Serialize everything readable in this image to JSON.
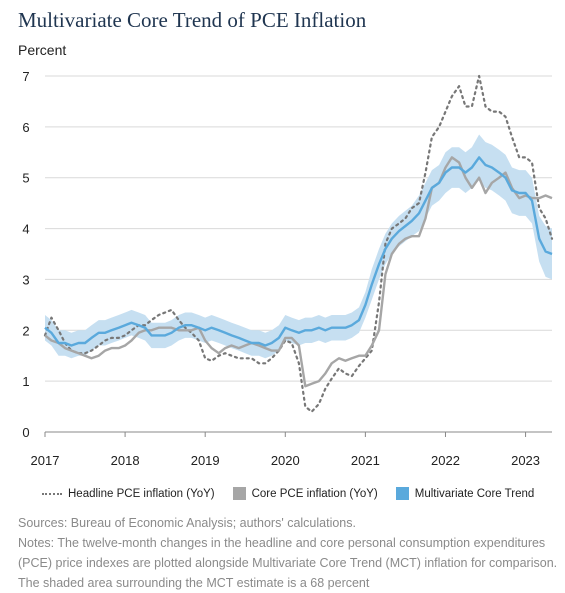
{
  "title": "Multivariate Core Trend of PCE Inflation",
  "ylabel": "Percent",
  "sources": "Sources: Bureau of Economic Analysis; authors' calculations.",
  "notes": "Notes: The twelve-month changes in the headline and core personal consumption expenditures (PCE) price indexes are plotted alongside Multivariate Core Trend (MCT) inflation for comparison. The shaded area surrounding the MCT estimate is a 68 percent",
  "chart_data": {
    "type": "line",
    "xlim": [
      2017.0,
      2023.33
    ],
    "ylim": [
      0,
      7
    ],
    "yticks": [
      "0",
      "1",
      "2",
      "3",
      "4",
      "5",
      "6",
      "7"
    ],
    "xticks": [
      {
        "value": 2017,
        "label": "2017"
      },
      {
        "value": 2018,
        "label": "2018"
      },
      {
        "value": 2019,
        "label": "2019"
      },
      {
        "value": 2020,
        "label": "2020"
      },
      {
        "value": 2021,
        "label": "2021"
      },
      {
        "value": 2022,
        "label": "2022"
      },
      {
        "value": 2023,
        "label": "2023"
      }
    ],
    "grid": true,
    "legend_position": "bottom",
    "series": [
      {
        "name": "Headline PCE inflation (YoY)",
        "style": "dotted",
        "color": "#777777",
        "points": [
          [
            2017.0,
            1.9
          ],
          [
            2017.08,
            2.25
          ],
          [
            2017.17,
            2.0
          ],
          [
            2017.25,
            1.75
          ],
          [
            2017.33,
            1.6
          ],
          [
            2017.42,
            1.55
          ],
          [
            2017.5,
            1.55
          ],
          [
            2017.58,
            1.6
          ],
          [
            2017.67,
            1.7
          ],
          [
            2017.75,
            1.8
          ],
          [
            2017.83,
            1.85
          ],
          [
            2017.92,
            1.85
          ],
          [
            2018.0,
            1.9
          ],
          [
            2018.08,
            2.0
          ],
          [
            2018.17,
            2.1
          ],
          [
            2018.25,
            2.1
          ],
          [
            2018.33,
            2.2
          ],
          [
            2018.42,
            2.3
          ],
          [
            2018.5,
            2.35
          ],
          [
            2018.58,
            2.4
          ],
          [
            2018.67,
            2.2
          ],
          [
            2018.75,
            2.05
          ],
          [
            2018.83,
            1.95
          ],
          [
            2018.92,
            1.8
          ],
          [
            2019.0,
            1.45
          ],
          [
            2019.08,
            1.4
          ],
          [
            2019.17,
            1.5
          ],
          [
            2019.25,
            1.55
          ],
          [
            2019.33,
            1.5
          ],
          [
            2019.42,
            1.45
          ],
          [
            2019.5,
            1.45
          ],
          [
            2019.58,
            1.45
          ],
          [
            2019.67,
            1.35
          ],
          [
            2019.75,
            1.35
          ],
          [
            2019.83,
            1.45
          ],
          [
            2019.92,
            1.6
          ],
          [
            2020.0,
            1.8
          ],
          [
            2020.08,
            1.75
          ],
          [
            2020.17,
            1.35
          ],
          [
            2020.25,
            0.5
          ],
          [
            2020.33,
            0.4
          ],
          [
            2020.42,
            0.55
          ],
          [
            2020.5,
            0.85
          ],
          [
            2020.58,
            1.05
          ],
          [
            2020.67,
            1.25
          ],
          [
            2020.75,
            1.15
          ],
          [
            2020.83,
            1.1
          ],
          [
            2020.92,
            1.3
          ],
          [
            2021.0,
            1.45
          ],
          [
            2021.08,
            1.6
          ],
          [
            2021.17,
            2.55
          ],
          [
            2021.25,
            3.7
          ],
          [
            2021.33,
            4.0
          ],
          [
            2021.42,
            4.1
          ],
          [
            2021.5,
            4.2
          ],
          [
            2021.58,
            4.4
          ],
          [
            2021.67,
            4.5
          ],
          [
            2021.75,
            5.1
          ],
          [
            2021.83,
            5.8
          ],
          [
            2021.92,
            6.0
          ],
          [
            2022.0,
            6.3
          ],
          [
            2022.08,
            6.6
          ],
          [
            2022.17,
            6.8
          ],
          [
            2022.25,
            6.4
          ],
          [
            2022.33,
            6.4
          ],
          [
            2022.42,
            7.0
          ],
          [
            2022.5,
            6.4
          ],
          [
            2022.58,
            6.3
          ],
          [
            2022.67,
            6.3
          ],
          [
            2022.75,
            6.2
          ],
          [
            2022.83,
            5.8
          ],
          [
            2022.92,
            5.4
          ],
          [
            2023.0,
            5.4
          ],
          [
            2023.08,
            5.3
          ],
          [
            2023.17,
            4.4
          ],
          [
            2023.25,
            4.2
          ],
          [
            2023.33,
            3.8
          ]
        ]
      },
      {
        "name": "Core PCE inflation (YoY)",
        "style": "solid",
        "color": "#a6a6a6",
        "points": [
          [
            2017.0,
            1.9
          ],
          [
            2017.08,
            1.8
          ],
          [
            2017.17,
            1.75
          ],
          [
            2017.25,
            1.65
          ],
          [
            2017.33,
            1.6
          ],
          [
            2017.42,
            1.55
          ],
          [
            2017.5,
            1.5
          ],
          [
            2017.58,
            1.45
          ],
          [
            2017.67,
            1.5
          ],
          [
            2017.75,
            1.6
          ],
          [
            2017.83,
            1.65
          ],
          [
            2017.92,
            1.65
          ],
          [
            2018.0,
            1.7
          ],
          [
            2018.08,
            1.8
          ],
          [
            2018.17,
            1.95
          ],
          [
            2018.25,
            2.0
          ],
          [
            2018.33,
            2.0
          ],
          [
            2018.42,
            2.05
          ],
          [
            2018.5,
            2.05
          ],
          [
            2018.58,
            2.05
          ],
          [
            2018.67,
            2.0
          ],
          [
            2018.75,
            2.0
          ],
          [
            2018.83,
            2.0
          ],
          [
            2018.92,
            2.05
          ],
          [
            2019.0,
            1.8
          ],
          [
            2019.08,
            1.65
          ],
          [
            2019.17,
            1.55
          ],
          [
            2019.25,
            1.65
          ],
          [
            2019.33,
            1.7
          ],
          [
            2019.42,
            1.65
          ],
          [
            2019.5,
            1.7
          ],
          [
            2019.58,
            1.75
          ],
          [
            2019.67,
            1.7
          ],
          [
            2019.75,
            1.65
          ],
          [
            2019.83,
            1.6
          ],
          [
            2019.92,
            1.6
          ],
          [
            2020.0,
            1.85
          ],
          [
            2020.08,
            1.85
          ],
          [
            2020.17,
            1.7
          ],
          [
            2020.25,
            0.9
          ],
          [
            2020.33,
            0.95
          ],
          [
            2020.42,
            1.0
          ],
          [
            2020.5,
            1.15
          ],
          [
            2020.58,
            1.35
          ],
          [
            2020.67,
            1.45
          ],
          [
            2020.75,
            1.4
          ],
          [
            2020.83,
            1.45
          ],
          [
            2020.92,
            1.5
          ],
          [
            2021.0,
            1.5
          ],
          [
            2021.08,
            1.7
          ],
          [
            2021.17,
            2.0
          ],
          [
            2021.25,
            3.1
          ],
          [
            2021.33,
            3.5
          ],
          [
            2021.42,
            3.7
          ],
          [
            2021.5,
            3.8
          ],
          [
            2021.58,
            3.85
          ],
          [
            2021.67,
            3.85
          ],
          [
            2021.75,
            4.2
          ],
          [
            2021.83,
            4.8
          ],
          [
            2021.92,
            4.9
          ],
          [
            2022.0,
            5.2
          ],
          [
            2022.08,
            5.4
          ],
          [
            2022.17,
            5.3
          ],
          [
            2022.25,
            5.0
          ],
          [
            2022.33,
            4.8
          ],
          [
            2022.42,
            5.0
          ],
          [
            2022.5,
            4.7
          ],
          [
            2022.58,
            4.9
          ],
          [
            2022.67,
            5.0
          ],
          [
            2022.75,
            5.1
          ],
          [
            2022.83,
            4.8
          ],
          [
            2022.92,
            4.6
          ],
          [
            2023.0,
            4.65
          ],
          [
            2023.08,
            4.6
          ],
          [
            2023.17,
            4.6
          ],
          [
            2023.25,
            4.65
          ],
          [
            2023.33,
            4.6
          ]
        ]
      },
      {
        "name": "Multivariate Core Trend",
        "style": "solid",
        "color": "#5aa9dc",
        "band_color": "#c6dff1",
        "points": [
          [
            2017.0,
            2.05
          ],
          [
            2017.08,
            1.95
          ],
          [
            2017.17,
            1.75
          ],
          [
            2017.25,
            1.75
          ],
          [
            2017.33,
            1.7
          ],
          [
            2017.42,
            1.75
          ],
          [
            2017.5,
            1.75
          ],
          [
            2017.58,
            1.85
          ],
          [
            2017.67,
            1.95
          ],
          [
            2017.75,
            1.95
          ],
          [
            2017.83,
            2.0
          ],
          [
            2017.92,
            2.05
          ],
          [
            2018.0,
            2.1
          ],
          [
            2018.08,
            2.15
          ],
          [
            2018.17,
            2.1
          ],
          [
            2018.25,
            2.05
          ],
          [
            2018.33,
            1.9
          ],
          [
            2018.42,
            1.9
          ],
          [
            2018.5,
            1.9
          ],
          [
            2018.58,
            1.95
          ],
          [
            2018.67,
            2.05
          ],
          [
            2018.75,
            2.1
          ],
          [
            2018.83,
            2.1
          ],
          [
            2018.92,
            2.05
          ],
          [
            2019.0,
            2.0
          ],
          [
            2019.08,
            2.05
          ],
          [
            2019.17,
            2.0
          ],
          [
            2019.25,
            1.95
          ],
          [
            2019.33,
            1.9
          ],
          [
            2019.42,
            1.85
          ],
          [
            2019.5,
            1.8
          ],
          [
            2019.58,
            1.75
          ],
          [
            2019.67,
            1.75
          ],
          [
            2019.75,
            1.7
          ],
          [
            2019.83,
            1.75
          ],
          [
            2019.92,
            1.85
          ],
          [
            2020.0,
            2.05
          ],
          [
            2020.08,
            2.0
          ],
          [
            2020.17,
            1.95
          ],
          [
            2020.25,
            2.0
          ],
          [
            2020.33,
            2.0
          ],
          [
            2020.42,
            2.05
          ],
          [
            2020.5,
            2.0
          ],
          [
            2020.58,
            2.05
          ],
          [
            2020.67,
            2.05
          ],
          [
            2020.75,
            2.05
          ],
          [
            2020.83,
            2.1
          ],
          [
            2020.92,
            2.2
          ],
          [
            2021.0,
            2.5
          ],
          [
            2021.08,
            2.9
          ],
          [
            2021.17,
            3.3
          ],
          [
            2021.25,
            3.6
          ],
          [
            2021.33,
            3.8
          ],
          [
            2021.42,
            3.95
          ],
          [
            2021.5,
            4.05
          ],
          [
            2021.58,
            4.15
          ],
          [
            2021.67,
            4.3
          ],
          [
            2021.75,
            4.55
          ],
          [
            2021.83,
            4.8
          ],
          [
            2021.92,
            4.9
          ],
          [
            2022.0,
            5.1
          ],
          [
            2022.08,
            5.2
          ],
          [
            2022.17,
            5.2
          ],
          [
            2022.25,
            5.1
          ],
          [
            2022.33,
            5.2
          ],
          [
            2022.42,
            5.4
          ],
          [
            2022.5,
            5.25
          ],
          [
            2022.58,
            5.2
          ],
          [
            2022.67,
            5.1
          ],
          [
            2022.75,
            5.0
          ],
          [
            2022.83,
            4.75
          ],
          [
            2022.92,
            4.7
          ],
          [
            2023.0,
            4.7
          ],
          [
            2023.08,
            4.55
          ],
          [
            2023.17,
            3.8
          ],
          [
            2023.25,
            3.55
          ],
          [
            2023.33,
            3.5
          ]
        ],
        "band_halfwidth": [
          0.25,
          0.25,
          0.25,
          0.25,
          0.25,
          0.25,
          0.25,
          0.25,
          0.25,
          0.25,
          0.25,
          0.25,
          0.25,
          0.25,
          0.25,
          0.25,
          0.25,
          0.25,
          0.25,
          0.25,
          0.25,
          0.25,
          0.25,
          0.25,
          0.25,
          0.25,
          0.25,
          0.25,
          0.25,
          0.25,
          0.25,
          0.25,
          0.25,
          0.25,
          0.25,
          0.25,
          0.25,
          0.25,
          0.25,
          0.25,
          0.25,
          0.25,
          0.25,
          0.25,
          0.25,
          0.25,
          0.25,
          0.25,
          0.25,
          0.3,
          0.3,
          0.3,
          0.3,
          0.3,
          0.3,
          0.3,
          0.35,
          0.35,
          0.35,
          0.35,
          0.4,
          0.4,
          0.4,
          0.4,
          0.4,
          0.45,
          0.45,
          0.45,
          0.45,
          0.45,
          0.45,
          0.45,
          0.45,
          0.45,
          0.45,
          0.5,
          0.5
        ]
      }
    ]
  }
}
